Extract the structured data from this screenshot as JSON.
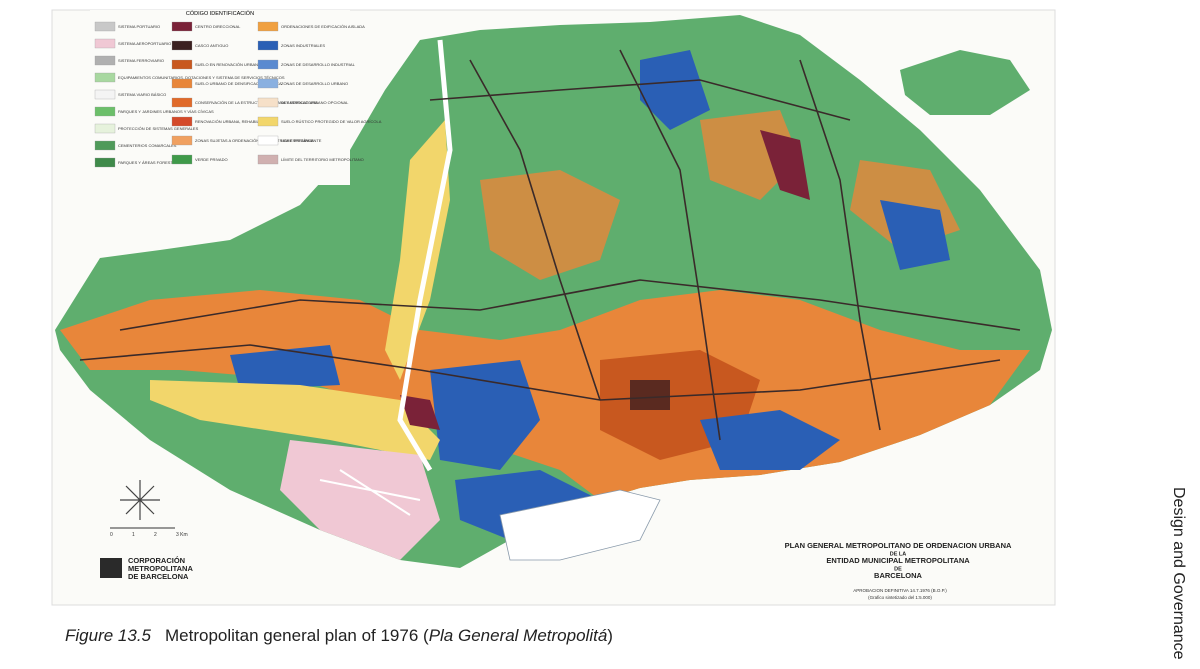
{
  "legend": {
    "title": "CÓDIGO IDENTIFICACIÓN",
    "columns": [
      [
        "SISTEMA PORTUARIO",
        "SISTEMA AEROPORTUARIO",
        "SISTEMA FERROVIARIO",
        "EQUIPAMIENTOS COMUNITARIOS, DOTACIONES Y SISTEMA DE SERVICIOS TÉCNICOS",
        "SISTEMA VIARIO BÁSICO",
        "PARQUES Y JARDINES URBANOS Y VÍAS CÍVICAS",
        "PROTECCIÓN DE SISTEMAS GENERALES",
        "CEMENTERIOS COMARCALES",
        "PARQUES Y ÁREAS FORESTALES"
      ],
      [
        "CENTRO DIRECCIONAL",
        "CASCO ANTIGUO",
        "SUELO EN RENOVACIÓN URBANA",
        "SUELO URBANO DE DENSIFICACIÓN BÁSICA",
        "CONSERVACIÓN DE LA ESTRUCTURA URBANA Y EDIFICATORIA",
        "RENOVACIÓN URBANA, REHABILITACIÓN",
        "ZONAS SUJETAS A ORDENACIÓN VOLUMÉTRICA ESPECÍFICA",
        "VERDE PRIVADO"
      ],
      [
        "ORDENACIONES DE EDIFICACIÓN AISLADA",
        "ZONAS INDUSTRIALES",
        "ZONAS DE DESARROLLO INDUSTRIAL",
        "ZONAS DE DESARROLLO URBANO",
        "DESARROLLO URBANO OPCIONAL",
        "SUELO RÚSTICO PROTEGIDO DE VALOR AGRÍCOLA",
        "LIBRE PERMANENTE",
        "LÍMITE DEL TERRITORIO METROPOLITANO"
      ]
    ]
  },
  "title_block": {
    "lines": [
      "PLAN GENERAL METROPOLITANO DE ORDENACION URBANA",
      "DE LA",
      "ENTIDAD MUNICIPAL METROPOLITANA",
      "DE",
      "BARCELONA"
    ],
    "approval": "APROBACION DEFINITIVA 14.7.1976 (B.O.P.)",
    "note": "(Grafico sintetizado del 1:5.000)"
  },
  "logo": {
    "lines": [
      "CORPORACIÓN",
      "METROPOLITANA",
      "DE BARCELONA"
    ]
  },
  "scale": {
    "labels": [
      "0",
      "1",
      "2",
      "3 Km"
    ]
  },
  "caption": {
    "label": "Figure 13.5",
    "text": "Metropolitan general plan of 1976 (",
    "italic": "Pla General Metropolitá",
    "end": ")"
  },
  "side_text": "Design and Governance"
}
